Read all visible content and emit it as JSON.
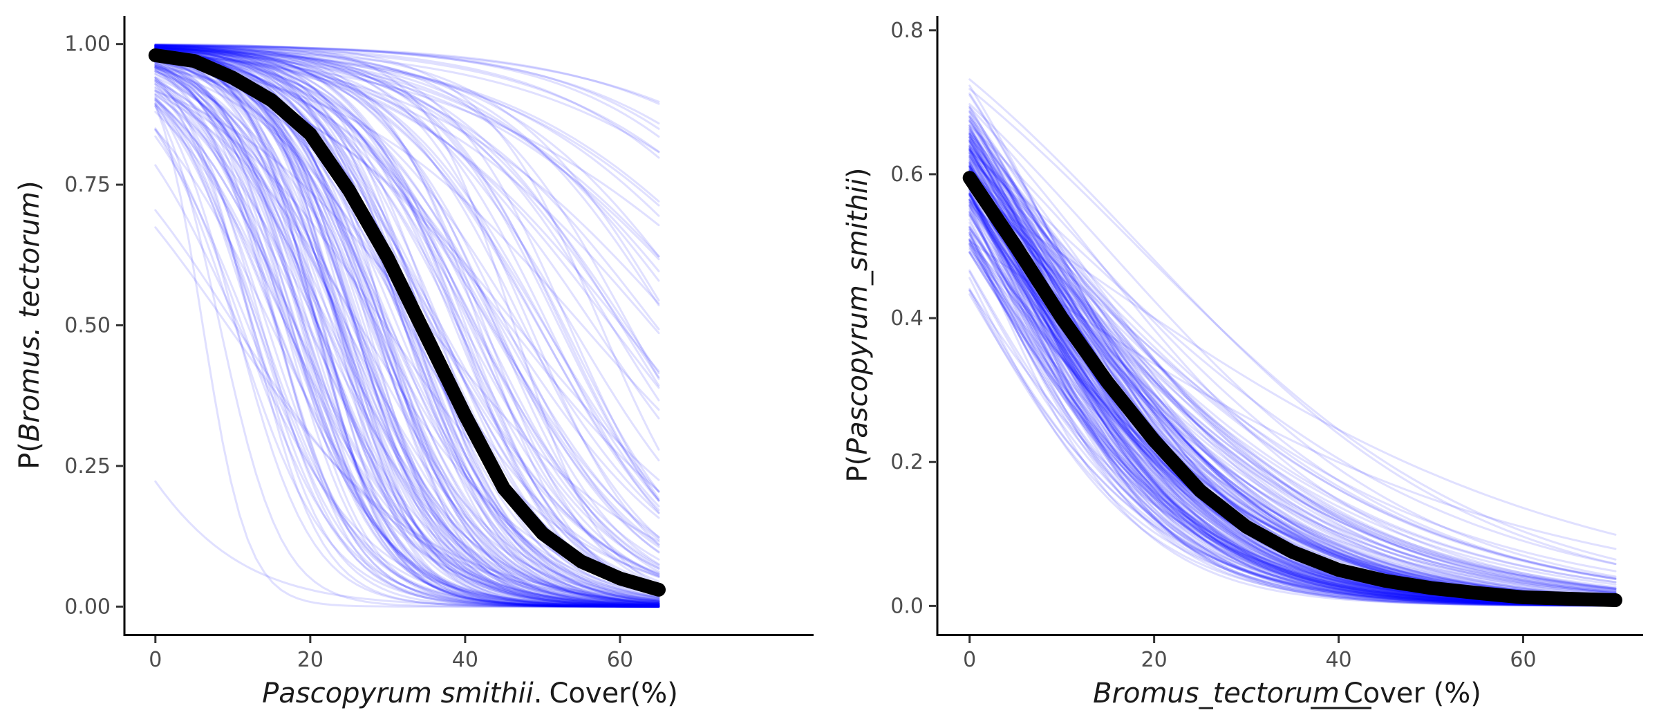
{
  "colors": {
    "draws": "#0000ff",
    "mean": "#000000",
    "background": "#ffffff"
  },
  "chart_data": [
    {
      "type": "line",
      "title": "",
      "xlabel": {
        "species": "Pascopyrum smithii",
        "sep": ".",
        "unit": "Cover(%)"
      },
      "ylabel": {
        "prefix": "P(",
        "species": "Bromus. tectorum",
        "suffix": ")"
      },
      "xlim": [
        -4,
        85
      ],
      "ylim": [
        -0.05,
        1.05
      ],
      "x_ticks": [
        0,
        20,
        40,
        60
      ],
      "y_ticks": [
        0,
        0.25,
        0.5,
        0.75,
        1.0
      ],
      "x_tick_labels": [
        "0",
        "20",
        "40",
        "60"
      ],
      "y_tick_labels": [
        "0.00",
        "0.25",
        "0.50",
        "0.75",
        "1.00"
      ],
      "grid": false,
      "legend": "none",
      "x_range_data": [
        0,
        65
      ],
      "series": [
        {
          "role": "mean",
          "x": [
            0,
            5,
            10,
            15,
            20,
            25,
            30,
            35,
            40,
            45,
            50,
            55,
            60,
            65
          ],
          "y": [
            0.98,
            0.97,
            0.94,
            0.9,
            0.84,
            0.74,
            0.62,
            0.48,
            0.34,
            0.21,
            0.13,
            0.08,
            0.05,
            0.03
          ]
        }
      ],
      "posterior_draws": {
        "count": 220,
        "alpha": 0.12,
        "shape": "logistic-decreasing"
      }
    },
    {
      "type": "line",
      "title": "",
      "xlabel": {
        "species": "Bromus_tectorum",
        "underline": "____",
        "unit": "Cover (%)"
      },
      "ylabel": {
        "prefix": "P(",
        "species": "Pascopyrum_smithii",
        "suffix": ")"
      },
      "xlim": [
        -3.5,
        73
      ],
      "ylim": [
        -0.04,
        0.82
      ],
      "x_ticks": [
        0,
        20,
        40,
        60
      ],
      "y_ticks": [
        0,
        0.2,
        0.4,
        0.6,
        0.8
      ],
      "x_tick_labels": [
        "0",
        "20",
        "40",
        "60"
      ],
      "y_tick_labels": [
        "0.0",
        "0.2",
        "0.4",
        "0.6",
        "0.8"
      ],
      "grid": false,
      "legend": "none",
      "x_range_data": [
        0,
        70
      ],
      "series": [
        {
          "role": "mean",
          "x": [
            0,
            5,
            10,
            15,
            20,
            25,
            30,
            35,
            40,
            45,
            50,
            55,
            60,
            65,
            70
          ],
          "y": [
            0.595,
            0.5,
            0.4,
            0.31,
            0.23,
            0.16,
            0.11,
            0.075,
            0.05,
            0.035,
            0.025,
            0.018,
            0.012,
            0.01,
            0.008
          ]
        }
      ],
      "posterior_draws": {
        "count": 220,
        "alpha": 0.12,
        "shape": "logistic-decreasing"
      }
    }
  ]
}
